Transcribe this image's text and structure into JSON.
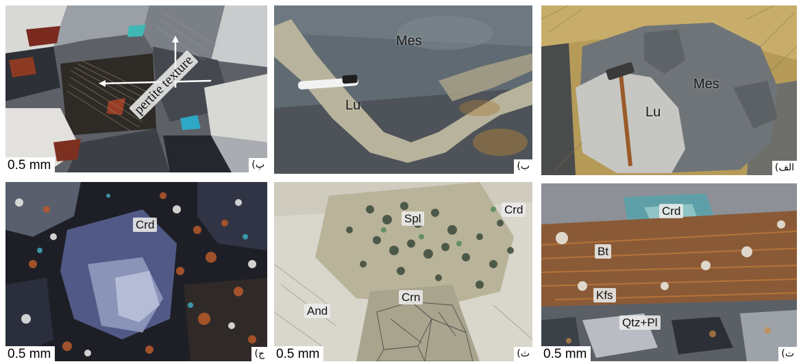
{
  "panels": {
    "p": {
      "panel_label": "(پ",
      "scale_bar": "0.5 mm",
      "annotation": "pertite texture"
    },
    "b": {
      "panel_label": "(ب",
      "labels": {
        "mes": "Mes",
        "lu": "Lu"
      }
    },
    "alef": {
      "panel_label": "(الف",
      "labels": {
        "mes": "Mes",
        "lu": "Lu"
      }
    },
    "jim": {
      "panel_label": "(ج",
      "scale_bar": "0.5 mm",
      "labels": {
        "crd": "Crd"
      }
    },
    "se": {
      "panel_label": "(ث",
      "scale_bar": "0.5 mm",
      "labels": {
        "spl": "Spl",
        "crd": "Crd",
        "and": "And",
        "crn": "Crn"
      }
    },
    "te": {
      "panel_label": "(ت",
      "scale_bar": "0.5 mm",
      "labels": {
        "crd": "Crd",
        "bt": "Bt",
        "kfs": "Kfs",
        "qtz_pl": "Qtz+Pl"
      }
    }
  }
}
